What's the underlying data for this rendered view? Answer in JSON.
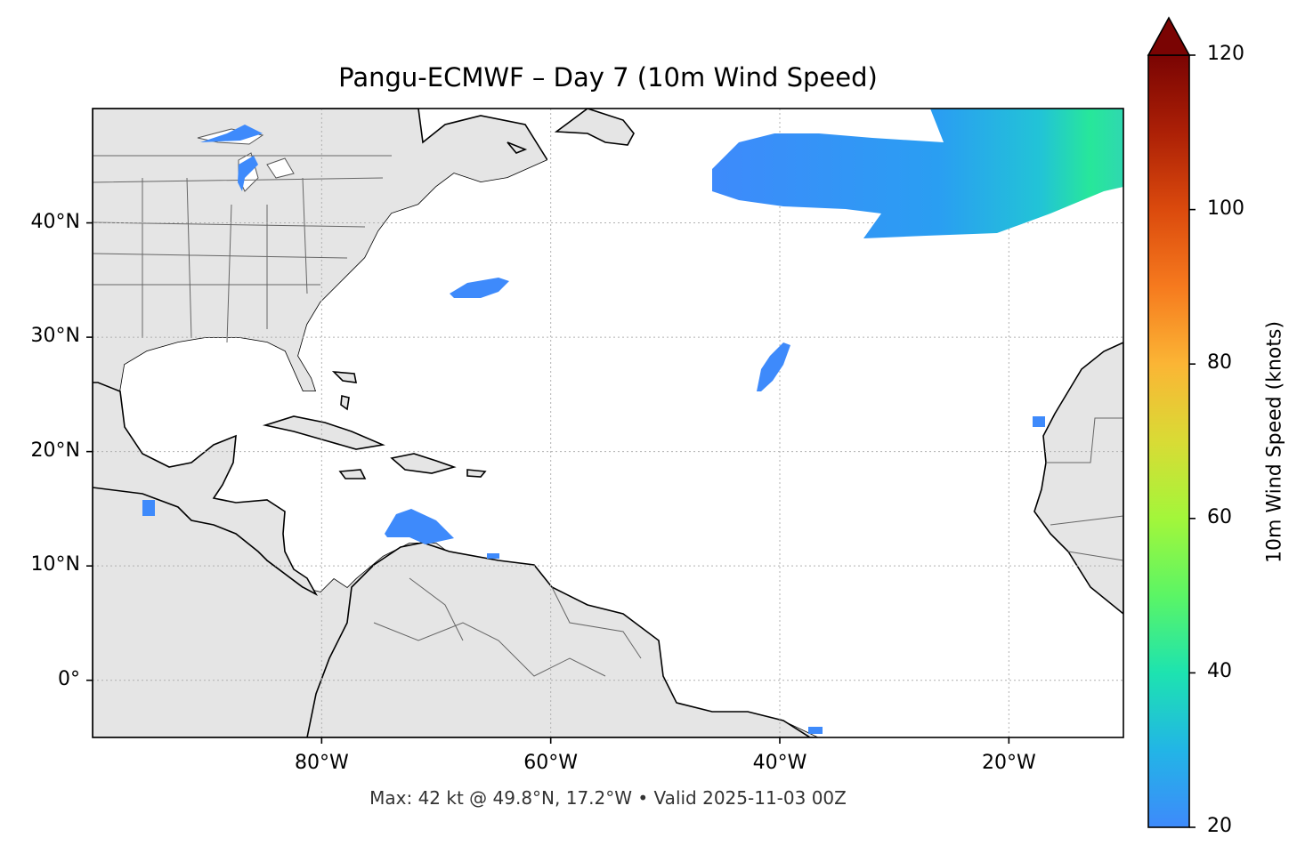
{
  "title": "Pangu-ECMWF – Day 7 (10m Wind Speed)",
  "footer": "Max: 42 kt @ 49.8°N, 17.2°W • Valid 2025-11-03 00Z",
  "map": {
    "projection": "plate-carree",
    "lon_range": [
      -100,
      -10
    ],
    "lat_range": [
      -5,
      50
    ],
    "lat_ticks": [
      {
        "value": 40,
        "label": "40°N"
      },
      {
        "value": 30,
        "label": "30°N"
      },
      {
        "value": 20,
        "label": "20°N"
      },
      {
        "value": 10,
        "label": "10°N"
      },
      {
        "value": 0,
        "label": "0°"
      }
    ],
    "lon_ticks": [
      {
        "value": -80,
        "label": "80°W"
      },
      {
        "value": -60,
        "label": "60°W"
      },
      {
        "value": -40,
        "label": "40°W"
      },
      {
        "value": -20,
        "label": "20°W"
      }
    ],
    "gridlines": true,
    "land_color": "#e5e5e5",
    "ocean_color": "#ffffff"
  },
  "colorbar": {
    "label": "10m Wind Speed (knots)",
    "min": 20,
    "max": 120,
    "extend": "max",
    "ticks": [
      20,
      40,
      60,
      80,
      100,
      120
    ],
    "colors": [
      "#3e8afb",
      "#22b5e6",
      "#1de3b0",
      "#5bf565",
      "#a3f63a",
      "#d9db35",
      "#fbb535",
      "#f67a1e",
      "#db4a0d",
      "#ac2006",
      "#7a0403"
    ],
    "extend_color": "#7a0403"
  },
  "wind_areas": [
    {
      "name": "north-atlantic-jet",
      "speed_kt": 30
    },
    {
      "name": "central-atlantic-patch",
      "speed_kt": 22
    },
    {
      "name": "caribbean-patch",
      "speed_kt": 21
    },
    {
      "name": "bermuda-patch",
      "speed_kt": 21
    }
  ]
}
